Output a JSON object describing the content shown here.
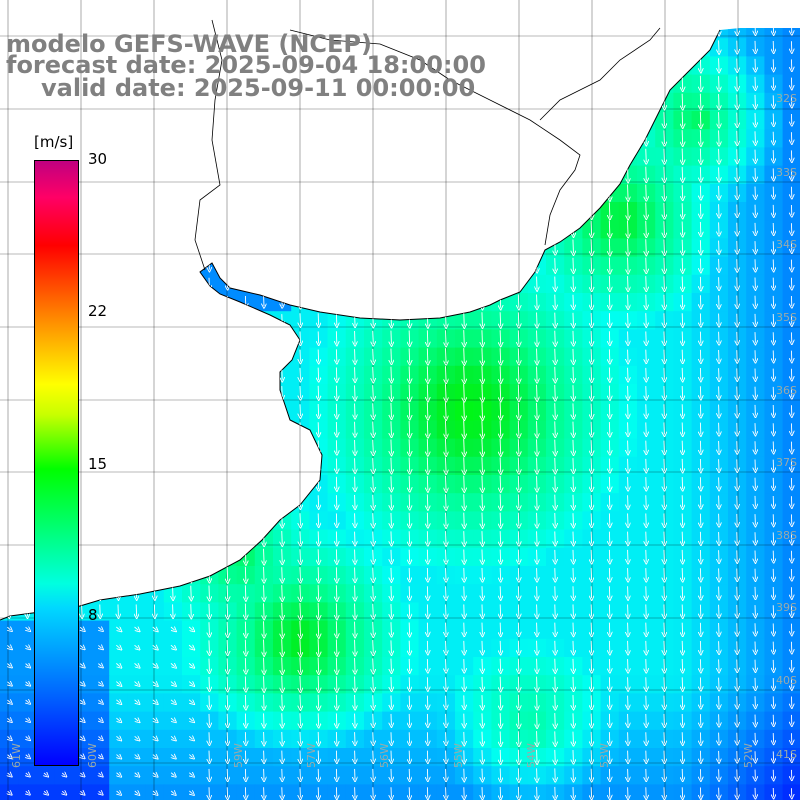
{
  "title": {
    "line1": "modelo GEFS-WAVE (NCEP)",
    "line2": "forecast date: 2025-09-04 18:00:00",
    "line3": "valid date: 2025-09-11 00:00:00"
  },
  "colorbar": {
    "unit": "[m/s]",
    "ticks": [
      "30",
      "22",
      "15",
      "8"
    ],
    "tick_values": [
      30,
      22,
      15,
      8
    ],
    "colors": [
      "#0000ff",
      "#00d8ff",
      "#00ff00",
      "#ffff00",
      "#ff0000",
      "#c00080"
    ]
  },
  "map": {
    "land_color": "#ffffff",
    "coastline_color": "#000000",
    "grid_color": "#000000",
    "arrow_color": "#ffffff",
    "lat_labels": [
      "32S",
      "33S",
      "34S",
      "35S",
      "36S",
      "37S",
      "38S",
      "39S",
      "40S",
      "41S"
    ],
    "lon_labels": [
      "61W",
      "60W",
      "59W",
      "57W",
      "56W",
      "55W",
      "54W",
      "53W",
      "52W"
    ],
    "wind_direction": "from north-north-east toward south-south-west"
  }
}
